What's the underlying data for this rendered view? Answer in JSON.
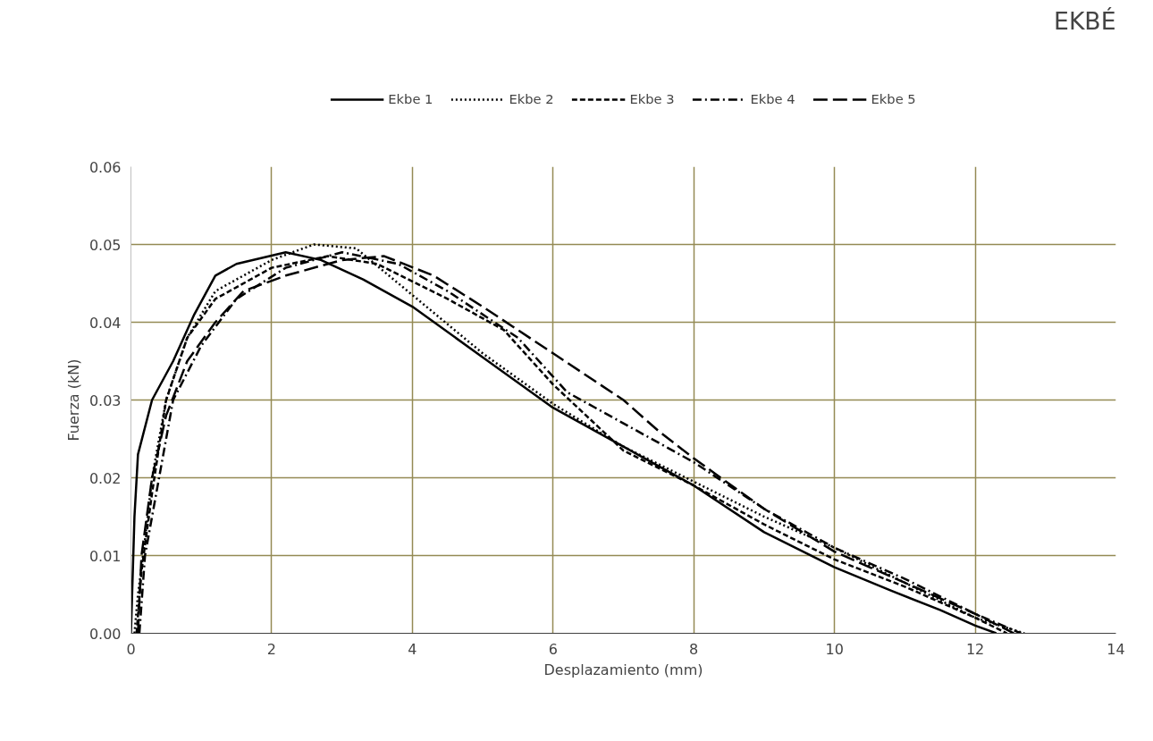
{
  "chart_data": {
    "type": "line",
    "title": "EKBÉ",
    "xlabel": "Desplazamiento (mm)",
    "ylabel": "Fuerza (kN)",
    "xlim": [
      0,
      14
    ],
    "xticks": [
      0,
      2,
      4,
      6,
      8,
      10,
      12,
      14
    ],
    "ylim": [
      0,
      0.06
    ],
    "yticks": [
      {
        "value": 0,
        "label": "0.00"
      },
      {
        "value": 0.01,
        "label": "0.01"
      },
      {
        "value": 0.02,
        "label": "0.02"
      },
      {
        "value": 0.03,
        "label": "0.03"
      },
      {
        "value": 0.04,
        "label": "0.04"
      },
      {
        "value": 0.05,
        "label": "0.05"
      },
      {
        "value": 0.06,
        "label": "0.06"
      }
    ],
    "grid": true,
    "legend": "top",
    "marker": "none",
    "series": [
      {
        "name": "Ekbe 1",
        "color": "#000000",
        "line_style": "solid",
        "x": [
          0,
          0.05,
          0.1,
          0.3,
          0.6,
          0.9,
          1.2,
          1.5,
          2.2,
          2.7,
          3.3,
          4,
          5,
          6,
          7,
          8,
          9,
          10,
          10.8,
          11.5,
          12,
          12.3
        ],
        "values": [
          0,
          0.015,
          0.023,
          0.03,
          0.035,
          0.041,
          0.046,
          0.0475,
          0.049,
          0.048,
          0.0455,
          0.042,
          0.0355,
          0.029,
          0.024,
          0.019,
          0.013,
          0.0085,
          0.0055,
          0.003,
          0.001,
          0
        ]
      },
      {
        "name": "Ekbe 2",
        "color": "#000000",
        "line_style": "dotted",
        "x": [
          0.05,
          0.1,
          0.2,
          0.3,
          0.5,
          0.8,
          1.2,
          2,
          2.6,
          3.2,
          4,
          5,
          6,
          7,
          8,
          9,
          10,
          11,
          12,
          12.7
        ],
        "values": [
          0,
          0.005,
          0.012,
          0.02,
          0.03,
          0.038,
          0.044,
          0.048,
          0.05,
          0.0495,
          0.0435,
          0.036,
          0.0295,
          0.024,
          0.0195,
          0.015,
          0.011,
          0.0065,
          0.002,
          0
        ]
      },
      {
        "name": "Ekbe 3",
        "color": "#000000",
        "line_style": "dashed",
        "x": [
          0.08,
          0.15,
          0.3,
          0.5,
          0.8,
          1.2,
          2,
          2.8,
          3.5,
          4.5,
          5.3,
          6,
          7,
          8,
          9,
          10,
          11,
          12,
          12.45
        ],
        "values": [
          0,
          0.008,
          0.018,
          0.03,
          0.038,
          0.043,
          0.047,
          0.0485,
          0.0475,
          0.043,
          0.039,
          0.032,
          0.0235,
          0.019,
          0.014,
          0.0095,
          0.006,
          0.002,
          0
        ]
      },
      {
        "name": "Ekbe 4",
        "color": "#000000",
        "line_style": "dashdot",
        "x": [
          0.12,
          0.2,
          0.4,
          0.6,
          1,
          1.5,
          2.2,
          3,
          3.8,
          4.5,
          5.5,
          6.2,
          7,
          8,
          9,
          10,
          11,
          12,
          12.65
        ],
        "values": [
          0,
          0.01,
          0.02,
          0.03,
          0.037,
          0.043,
          0.047,
          0.049,
          0.0475,
          0.044,
          0.038,
          0.031,
          0.027,
          0.022,
          0.016,
          0.011,
          0.007,
          0.0025,
          0
        ]
      },
      {
        "name": "Ekbe 5",
        "color": "#000000",
        "line_style": "longdash",
        "x": [
          0.1,
          0.15,
          0.3,
          0.5,
          0.8,
          1.2,
          1.6,
          2.2,
          3,
          3.6,
          4.3,
          5,
          6,
          7,
          7.5,
          8,
          9,
          10,
          11,
          12,
          12.55
        ],
        "values": [
          0,
          0.01,
          0.02,
          0.028,
          0.035,
          0.04,
          0.044,
          0.046,
          0.048,
          0.0485,
          0.046,
          0.042,
          0.036,
          0.03,
          0.026,
          0.0225,
          0.016,
          0.0105,
          0.0065,
          0.0025,
          0
        ]
      }
    ]
  }
}
